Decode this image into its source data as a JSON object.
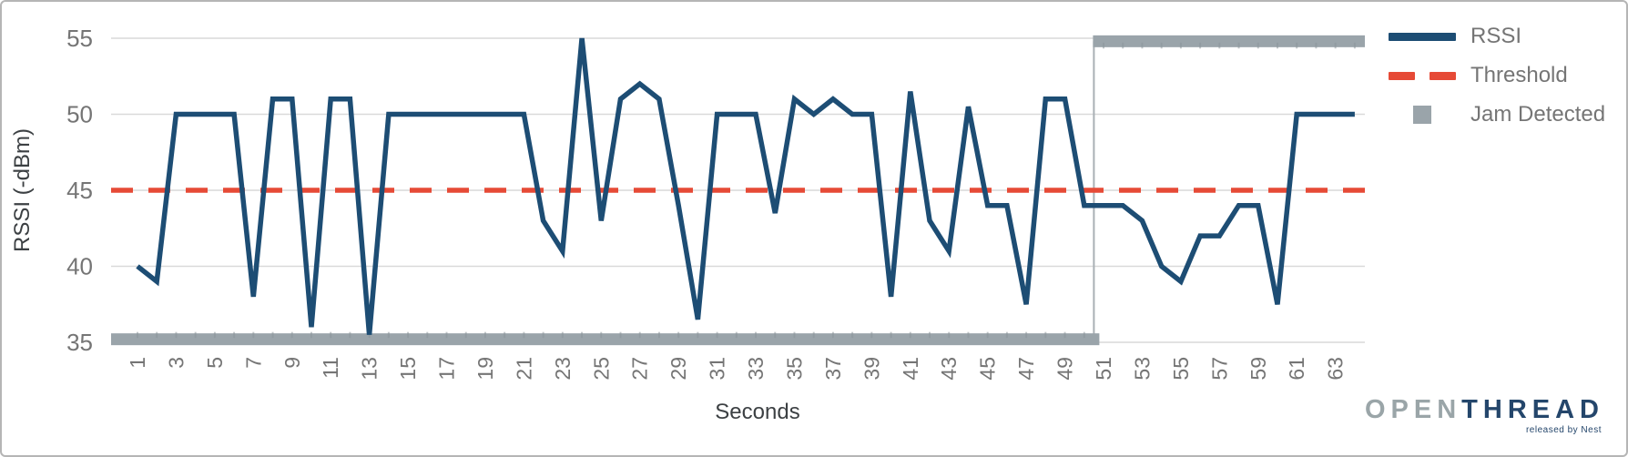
{
  "chart_data": {
    "type": "line",
    "title": "",
    "xlabel": "Seconds",
    "ylabel": "RSSI (-dBm)",
    "x_seconds": [
      1,
      2,
      3,
      4,
      5,
      6,
      7,
      8,
      9,
      10,
      11,
      12,
      13,
      14,
      15,
      16,
      17,
      18,
      19,
      20,
      21,
      22,
      23,
      24,
      25,
      26,
      27,
      28,
      29,
      30,
      31,
      32,
      33,
      34,
      35,
      36,
      37,
      38,
      39,
      40,
      41,
      42,
      43,
      44,
      45,
      46,
      47,
      48,
      49,
      50,
      51,
      52,
      53,
      54,
      55,
      56,
      57,
      58,
      59,
      60,
      61,
      62,
      63,
      64
    ],
    "series": [
      {
        "name": "RSSI",
        "type": "line",
        "color": "#1d4d74",
        "values": [
          40,
          39,
          50,
          50,
          50,
          50,
          38,
          51,
          51,
          36,
          51,
          51,
          35.5,
          50,
          50,
          50,
          50,
          50,
          50,
          50,
          50,
          43,
          41,
          55,
          43,
          51,
          52,
          51,
          44,
          36.5,
          50,
          50,
          50,
          43.5,
          51,
          50,
          51,
          50,
          50,
          38,
          51.5,
          43,
          41,
          50.5,
          44,
          44,
          37.5,
          51,
          51,
          44,
          44,
          44,
          43,
          40,
          39,
          42,
          42,
          44,
          44,
          37.5,
          50,
          50,
          50,
          50
        ]
      },
      {
        "name": "Threshold",
        "type": "dashed_line",
        "color": "#e64a36",
        "value": 45
      },
      {
        "name": "Jam Detected",
        "type": "marker_bar",
        "color": "#9aa4aa",
        "inactive_level": 35.2,
        "active_level": 54.8,
        "active_from_second": 51,
        "last_second": 64
      }
    ],
    "ylim": [
      35,
      55
    ],
    "yticks": [
      35,
      40,
      45,
      50,
      55
    ],
    "xticks": [
      1,
      3,
      5,
      7,
      9,
      11,
      13,
      15,
      17,
      19,
      21,
      23,
      25,
      27,
      29,
      31,
      33,
      35,
      37,
      39,
      41,
      43,
      45,
      47,
      49,
      51,
      53,
      55,
      57,
      59,
      61,
      63
    ],
    "grid": "horizontal",
    "legend_position": "top-right"
  },
  "legend": {
    "items": [
      {
        "label": "RSSI",
        "swatch": "line",
        "color": "#1d4d74"
      },
      {
        "label": "Threshold",
        "swatch": "dashes",
        "color": "#e64a36"
      },
      {
        "label": "Jam Detected",
        "swatch": "square",
        "color": "#9aa4aa"
      }
    ]
  },
  "logo": {
    "part1": "OPEN",
    "part2": "THREAD",
    "tagline": "released by Nest"
  },
  "colors": {
    "rssi_line": "#1d4d74",
    "threshold": "#e64a36",
    "jam_bar": "#9aa4aa",
    "jam_connector": "#a9b0b5",
    "jam_tick": "#8b959b",
    "gridline": "#d9d9d9",
    "tick_label": "#757575",
    "axis_title": "#3c4043",
    "legend_text": "#757575",
    "logo_open": "#9aa5a8",
    "logo_thread": "#24466b",
    "border": "#b5b5b5"
  }
}
